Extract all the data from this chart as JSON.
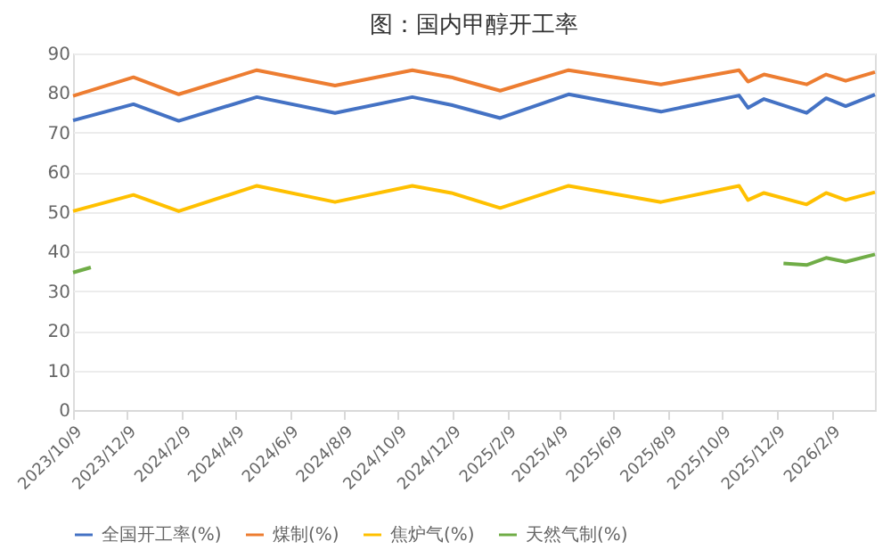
{
  "chart_data": {
    "type": "line",
    "title": "图：国内甲醇开工率",
    "x": [
      "2023-10-09",
      "2023-12-16",
      "2024-02-05",
      "2024-05-03",
      "2024-07-30",
      "2024-10-25",
      "2024-12-08",
      "2025-02-01",
      "2025-04-19",
      "2025-08-01",
      "2025-10-28",
      "2025-11-07",
      "2025-11-25",
      "2026-01-12",
      "2026-02-03",
      "2026-02-25",
      "2026-03-30"
    ],
    "series": [
      {
        "name": "全国开工率(%)",
        "color": "#4472c4",
        "values": [
          73.1,
          77.2,
          73,
          79,
          75,
          79,
          77,
          73.7,
          79.7,
          75.3,
          79.4,
          76.3,
          78.5,
          75,
          78.7,
          76.7,
          79.6
        ]
      },
      {
        "name": "煤制(%)",
        "color": "#ed7d31",
        "values": [
          79.3,
          84,
          79.7,
          85.8,
          81.9,
          85.8,
          84,
          80.6,
          85.8,
          82.2,
          85.8,
          82.9,
          84.7,
          82.2,
          84.7,
          83.1,
          85.3
        ]
      },
      {
        "name": "焦炉气(%)",
        "color": "#ffc000",
        "values": [
          50.2,
          54.3,
          50.2,
          56.6,
          52.5,
          56.6,
          54.8,
          51,
          56.6,
          52.5,
          56.6,
          53,
          54.8,
          51.9,
          54.8,
          53,
          55
        ]
      },
      {
        "name": "天然气制(%)",
        "color": "#70ad47",
        "x": [
          "2023-10-09",
          "2023-10-29",
          "2024-06-01",
          "2025-12-17",
          "2026-01-12",
          "2026-02-03",
          "2026-02-25",
          "2026-03-30"
        ],
        "values": [
          34.7,
          36,
          null,
          37,
          36.6,
          38.4,
          37.4,
          39.3
        ]
      }
    ],
    "xlim": [
      "2023-10-09",
      "2026-03-30"
    ],
    "xticks": [
      {
        "value": "2023-10-09",
        "label": "2023/10/9"
      },
      {
        "value": "2023-12-09",
        "label": "2023/12/9"
      },
      {
        "value": "2024-02-09",
        "label": "2024/2/9"
      },
      {
        "value": "2024-04-09",
        "label": "2024/4/9"
      },
      {
        "value": "2024-06-09",
        "label": "2024/6/9"
      },
      {
        "value": "2024-08-09",
        "label": "2024/8/9"
      },
      {
        "value": "2024-10-09",
        "label": "2024/10/9"
      },
      {
        "value": "2024-12-09",
        "label": "2024/12/9"
      },
      {
        "value": "2025-02-09",
        "label": "2025/2/9"
      },
      {
        "value": "2025-04-09",
        "label": "2025/4/9"
      },
      {
        "value": "2025-06-09",
        "label": "2025/6/9"
      },
      {
        "value": "2025-08-09",
        "label": "2025/8/9"
      },
      {
        "value": "2025-10-09",
        "label": "2025/10/9"
      },
      {
        "value": "2025-12-09",
        "label": "2025/12/9"
      },
      {
        "value": "2026-02-09",
        "label": "2026/2/9"
      }
    ],
    "ylim": [
      0,
      90
    ],
    "yticks": [
      0,
      10,
      20,
      30,
      40,
      50,
      60,
      70,
      80,
      90
    ],
    "grid": "y",
    "legend": "bottom",
    "marker": "none",
    "line_style": "solid"
  }
}
